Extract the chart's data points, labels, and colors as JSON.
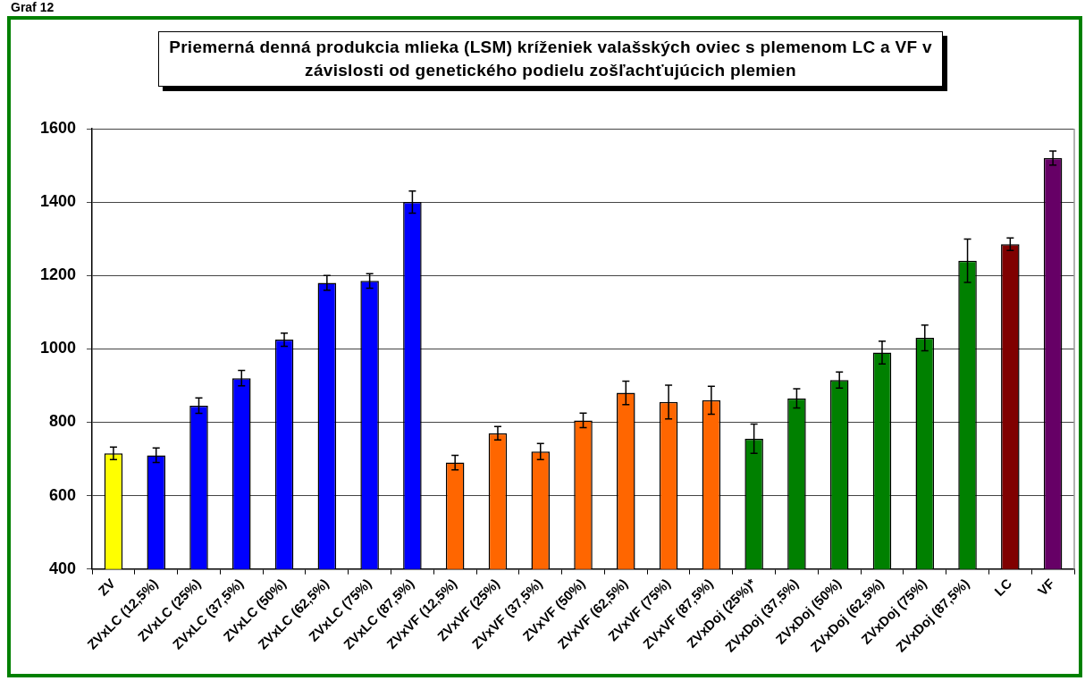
{
  "chart_data": {
    "type": "bar",
    "title": "Priemerná denná produkcia mlieka (LSM) kríženiek valašských oviec s plemenom LC a VF v závislosti od genetického podielu zošľachťujúcich plemien",
    "annotations": [
      "Graf 12"
    ],
    "categories": [
      "ZV",
      "ZVxLC (12,5%)",
      "ZVxLC (25%)",
      "ZVxLC (37,5%)",
      "ZVxLC (50%)",
      "ZVxLC (62,5%)",
      "ZVxLC (75%)",
      "ZVxLC (87,5%)",
      "ZVxVF (12,5%)",
      "ZVxVF (25%)",
      "ZVxVF (37,5%)",
      "ZVxVF (50%)",
      "ZVxVF (62,5%)",
      "ZVxVF (75%)",
      "ZVxVF (87,5%)",
      "ZVxDoj (25%)*",
      "ZVxDoj (37,5%)",
      "ZVxDoj (50%)",
      "ZVxDoj (62,5%)",
      "ZVxDoj (75%)",
      "ZVxDoj (87,5%)",
      "LC",
      "VF"
    ],
    "values": [
      715,
      710,
      845,
      920,
      1025,
      1180,
      1185,
      1400,
      690,
      770,
      720,
      805,
      880,
      855,
      860,
      755,
      865,
      915,
      990,
      1030,
      1240,
      1285,
      1520
    ],
    "errors": [
      17,
      20,
      21,
      21,
      18,
      20,
      20,
      30,
      20,
      18,
      22,
      20,
      32,
      46,
      38,
      40,
      26,
      22,
      31,
      35,
      59,
      17,
      19
    ],
    "colors": [
      "#ffff00",
      "#0000ff",
      "#0000ff",
      "#0000ff",
      "#0000ff",
      "#0000ff",
      "#0000ff",
      "#0000ff",
      "#ff6600",
      "#ff6600",
      "#ff6600",
      "#ff6600",
      "#ff6600",
      "#ff6600",
      "#ff6600",
      "#008000",
      "#008000",
      "#008000",
      "#008000",
      "#008000",
      "#008000",
      "#800000",
      "#660066"
    ],
    "ylim": [
      400,
      1600
    ],
    "yticks": [
      400,
      600,
      800,
      1000,
      1200,
      1400,
      1600
    ],
    "grid": "y"
  }
}
